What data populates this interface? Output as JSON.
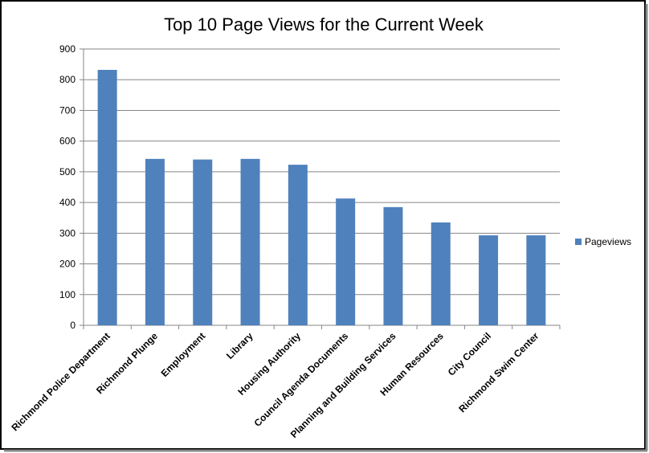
{
  "chart_data": {
    "type": "bar",
    "title": "Top 10 Page Views for the Current Week",
    "categories": [
      "Richmond Police Department",
      "Richmond Plunge",
      "Employment",
      "Library",
      "Housing Authority",
      "Council Agenda Documents",
      "Planning and Building Services",
      "Human Resources",
      "City Council",
      "Richmond Swim Center"
    ],
    "series": [
      {
        "name": "Pageviews",
        "color": "#4f81bd",
        "values": [
          832,
          542,
          540,
          542,
          523,
          413,
          385,
          335,
          293,
          293
        ]
      }
    ],
    "ylim": [
      0,
      900
    ],
    "yticks": [
      0,
      100,
      200,
      300,
      400,
      500,
      600,
      700,
      800,
      900
    ],
    "grid": true,
    "legend": "right"
  }
}
